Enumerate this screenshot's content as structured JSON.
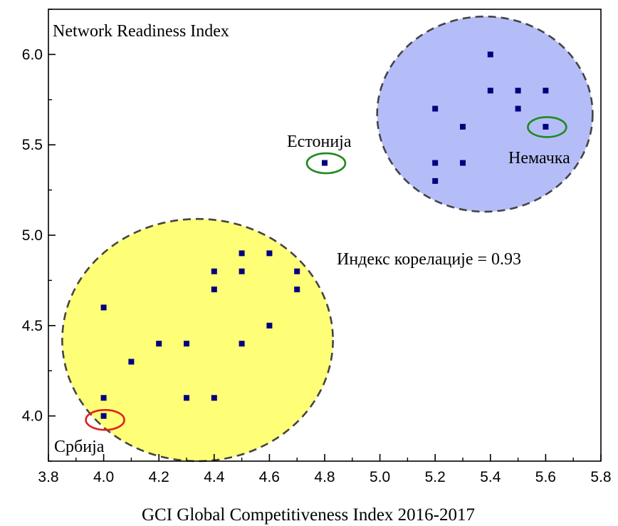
{
  "chart_data": {
    "type": "scatter",
    "title": "",
    "xlabel": "GCI Global Competitiveness Index 2016-2017",
    "ylabel": "Network Readiness Index",
    "xlim": [
      3.8,
      5.8
    ],
    "ylim": [
      3.75,
      6.25
    ],
    "xticks": [
      "3.8",
      "4.0",
      "4.2",
      "4.4",
      "4.6",
      "4.8",
      "5.0",
      "5.2",
      "5.4",
      "5.6",
      "5.8"
    ],
    "yticks": [
      "4.0",
      "4.5",
      "5.0",
      "5.5",
      "6.0"
    ],
    "grid": false,
    "points": [
      {
        "x": 4.0,
        "y": 4.6
      },
      {
        "x": 4.0,
        "y": 4.1
      },
      {
        "x": 4.0,
        "y": 4.0
      },
      {
        "x": 4.1,
        "y": 4.3
      },
      {
        "x": 4.2,
        "y": 4.4
      },
      {
        "x": 4.3,
        "y": 4.4
      },
      {
        "x": 4.3,
        "y": 4.1
      },
      {
        "x": 4.4,
        "y": 4.8
      },
      {
        "x": 4.4,
        "y": 4.7
      },
      {
        "x": 4.4,
        "y": 4.1
      },
      {
        "x": 4.5,
        "y": 4.9
      },
      {
        "x": 4.5,
        "y": 4.8
      },
      {
        "x": 4.5,
        "y": 4.4
      },
      {
        "x": 4.6,
        "y": 4.9
      },
      {
        "x": 4.6,
        "y": 4.5
      },
      {
        "x": 4.7,
        "y": 4.8
      },
      {
        "x": 4.7,
        "y": 4.7
      },
      {
        "x": 4.8,
        "y": 5.4
      },
      {
        "x": 5.2,
        "y": 5.7
      },
      {
        "x": 5.2,
        "y": 5.4
      },
      {
        "x": 5.2,
        "y": 5.3
      },
      {
        "x": 5.3,
        "y": 5.6
      },
      {
        "x": 5.3,
        "y": 5.4
      },
      {
        "x": 5.4,
        "y": 6.0
      },
      {
        "x": 5.4,
        "y": 5.8
      },
      {
        "x": 5.5,
        "y": 5.8
      },
      {
        "x": 5.5,
        "y": 5.7
      },
      {
        "x": 5.6,
        "y": 5.8
      },
      {
        "x": 5.6,
        "y": 5.6
      }
    ],
    "clusters": [
      {
        "color": "#ffff77",
        "center": [
          4.34,
          4.42
        ],
        "radius_x": 0.49,
        "radius_y": 0.67
      },
      {
        "color": "#b5bdf8",
        "center": [
          5.38,
          5.67
        ],
        "radius_x": 0.39,
        "radius_y": 0.54
      }
    ],
    "highlights": [
      {
        "label": "Србија",
        "x": 4.0,
        "y": 3.98,
        "color": "#e02020"
      },
      {
        "label": "Естонија",
        "x": 4.8,
        "y": 5.4,
        "color": "#1e8a1e"
      },
      {
        "label": "Немачка",
        "x": 5.6,
        "y": 5.6,
        "color": "#1e8a1e"
      }
    ],
    "annotation": "Индекс корелације = 0.93",
    "marker_color": "#000080"
  }
}
